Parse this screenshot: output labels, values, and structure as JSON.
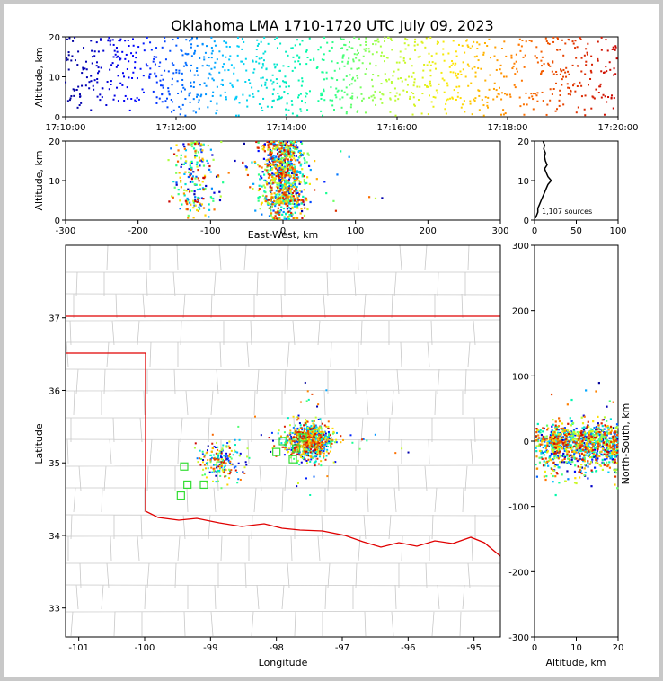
{
  "title": "Oklahoma LMA 1710-1720 UTC July 09, 2023",
  "source_count_label": "1,107 sources",
  "chart_data": [
    {
      "id": "time-altitude",
      "type": "scatter",
      "xlabel": "",
      "ylabel": "Altitude, km",
      "x_ticks": [
        "17:10:00",
        "17:12:00",
        "17:14:00",
        "17:16:00",
        "17:18:00",
        "17:20:00"
      ],
      "xlim": [
        0,
        10
      ],
      "ylim": [
        0,
        20
      ],
      "y_ticks": [
        0,
        10,
        20
      ],
      "color_by": "time",
      "point_count": 1107
    },
    {
      "id": "ew-altitude",
      "type": "scatter",
      "xlabel": "East-West, km",
      "ylabel": "Altitude, km",
      "xlim": [
        -300,
        300
      ],
      "ylim": [
        0,
        20
      ],
      "x_ticks": [
        -300,
        -200,
        -100,
        0,
        100,
        200,
        300
      ],
      "y_ticks": [
        0,
        10,
        20
      ]
    },
    {
      "id": "altitude-histogram",
      "type": "line",
      "xlim": [
        0,
        100
      ],
      "ylim": [
        0,
        20
      ],
      "x_ticks": [
        0,
        50,
        100
      ],
      "y_ticks": [
        0,
        10,
        20
      ],
      "profile": [
        [
          1,
          0.5
        ],
        [
          2,
          1
        ],
        [
          3,
          1.5
        ],
        [
          4,
          2
        ],
        [
          4,
          3
        ],
        [
          6,
          4
        ],
        [
          8,
          5
        ],
        [
          10,
          6
        ],
        [
          12,
          7
        ],
        [
          14,
          8
        ],
        [
          16,
          9
        ],
        [
          20,
          10
        ],
        [
          16,
          11
        ],
        [
          14,
          12
        ],
        [
          12,
          13
        ],
        [
          15,
          14
        ],
        [
          13,
          15
        ],
        [
          12,
          16
        ],
        [
          13,
          17
        ],
        [
          11,
          18
        ],
        [
          12,
          19
        ],
        [
          10,
          20
        ]
      ]
    },
    {
      "id": "plan-view",
      "type": "scatter",
      "xlabel": "Longitude",
      "ylabel": "Latitude",
      "xlim": [
        -101.2,
        -94.6
      ],
      "ylim": [
        32.6,
        38
      ],
      "x_ticks": [
        -101,
        -100,
        -99,
        -98,
        -97,
        -96,
        -95
      ],
      "y_ticks": [
        33,
        34,
        35,
        36,
        37
      ],
      "clusters": [
        {
          "lon": -97.8,
          "lat": 35.25,
          "spread": [
            0.25,
            0.22
          ],
          "count": 700
        },
        {
          "lon": -99.1,
          "lat": 34.9,
          "spread": [
            0.25,
            0.2
          ],
          "count": 180
        }
      ]
    },
    {
      "id": "altitude-ns",
      "type": "scatter",
      "xlabel": "Altitude, km",
      "ylabel": "North-South, km",
      "xlim": [
        0,
        20
      ],
      "ylim": [
        -300,
        300
      ],
      "x_ticks": [
        0,
        10,
        20
      ],
      "y_ticks": [
        -300,
        -200,
        -100,
        0,
        100,
        200,
        300
      ]
    }
  ]
}
